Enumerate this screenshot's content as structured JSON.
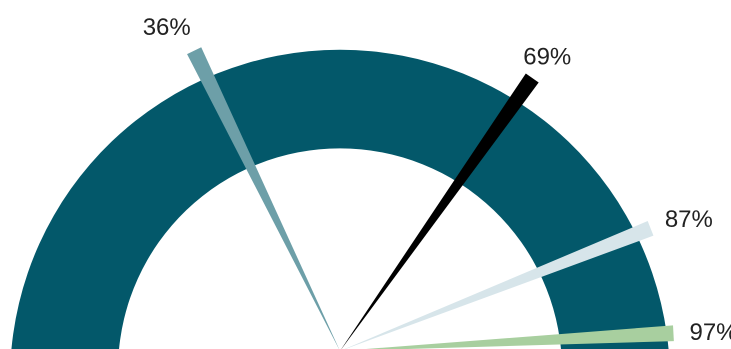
{
  "chart_data": {
    "type": "gauge",
    "title": "",
    "scale": [
      0,
      100
    ],
    "colors": {
      "band": "#03586a",
      "background": "#ffffff",
      "label": "#222222"
    },
    "markers": [
      {
        "value": 36,
        "label": "36%",
        "color": "#6d9fa8"
      },
      {
        "value": 69,
        "label": "69%",
        "color": "#000000"
      },
      {
        "value": 87,
        "label": "87%",
        "color": "#d7e5ea"
      },
      {
        "value": 97,
        "label": "97%",
        "color": "#a8cf9f"
      }
    ]
  }
}
